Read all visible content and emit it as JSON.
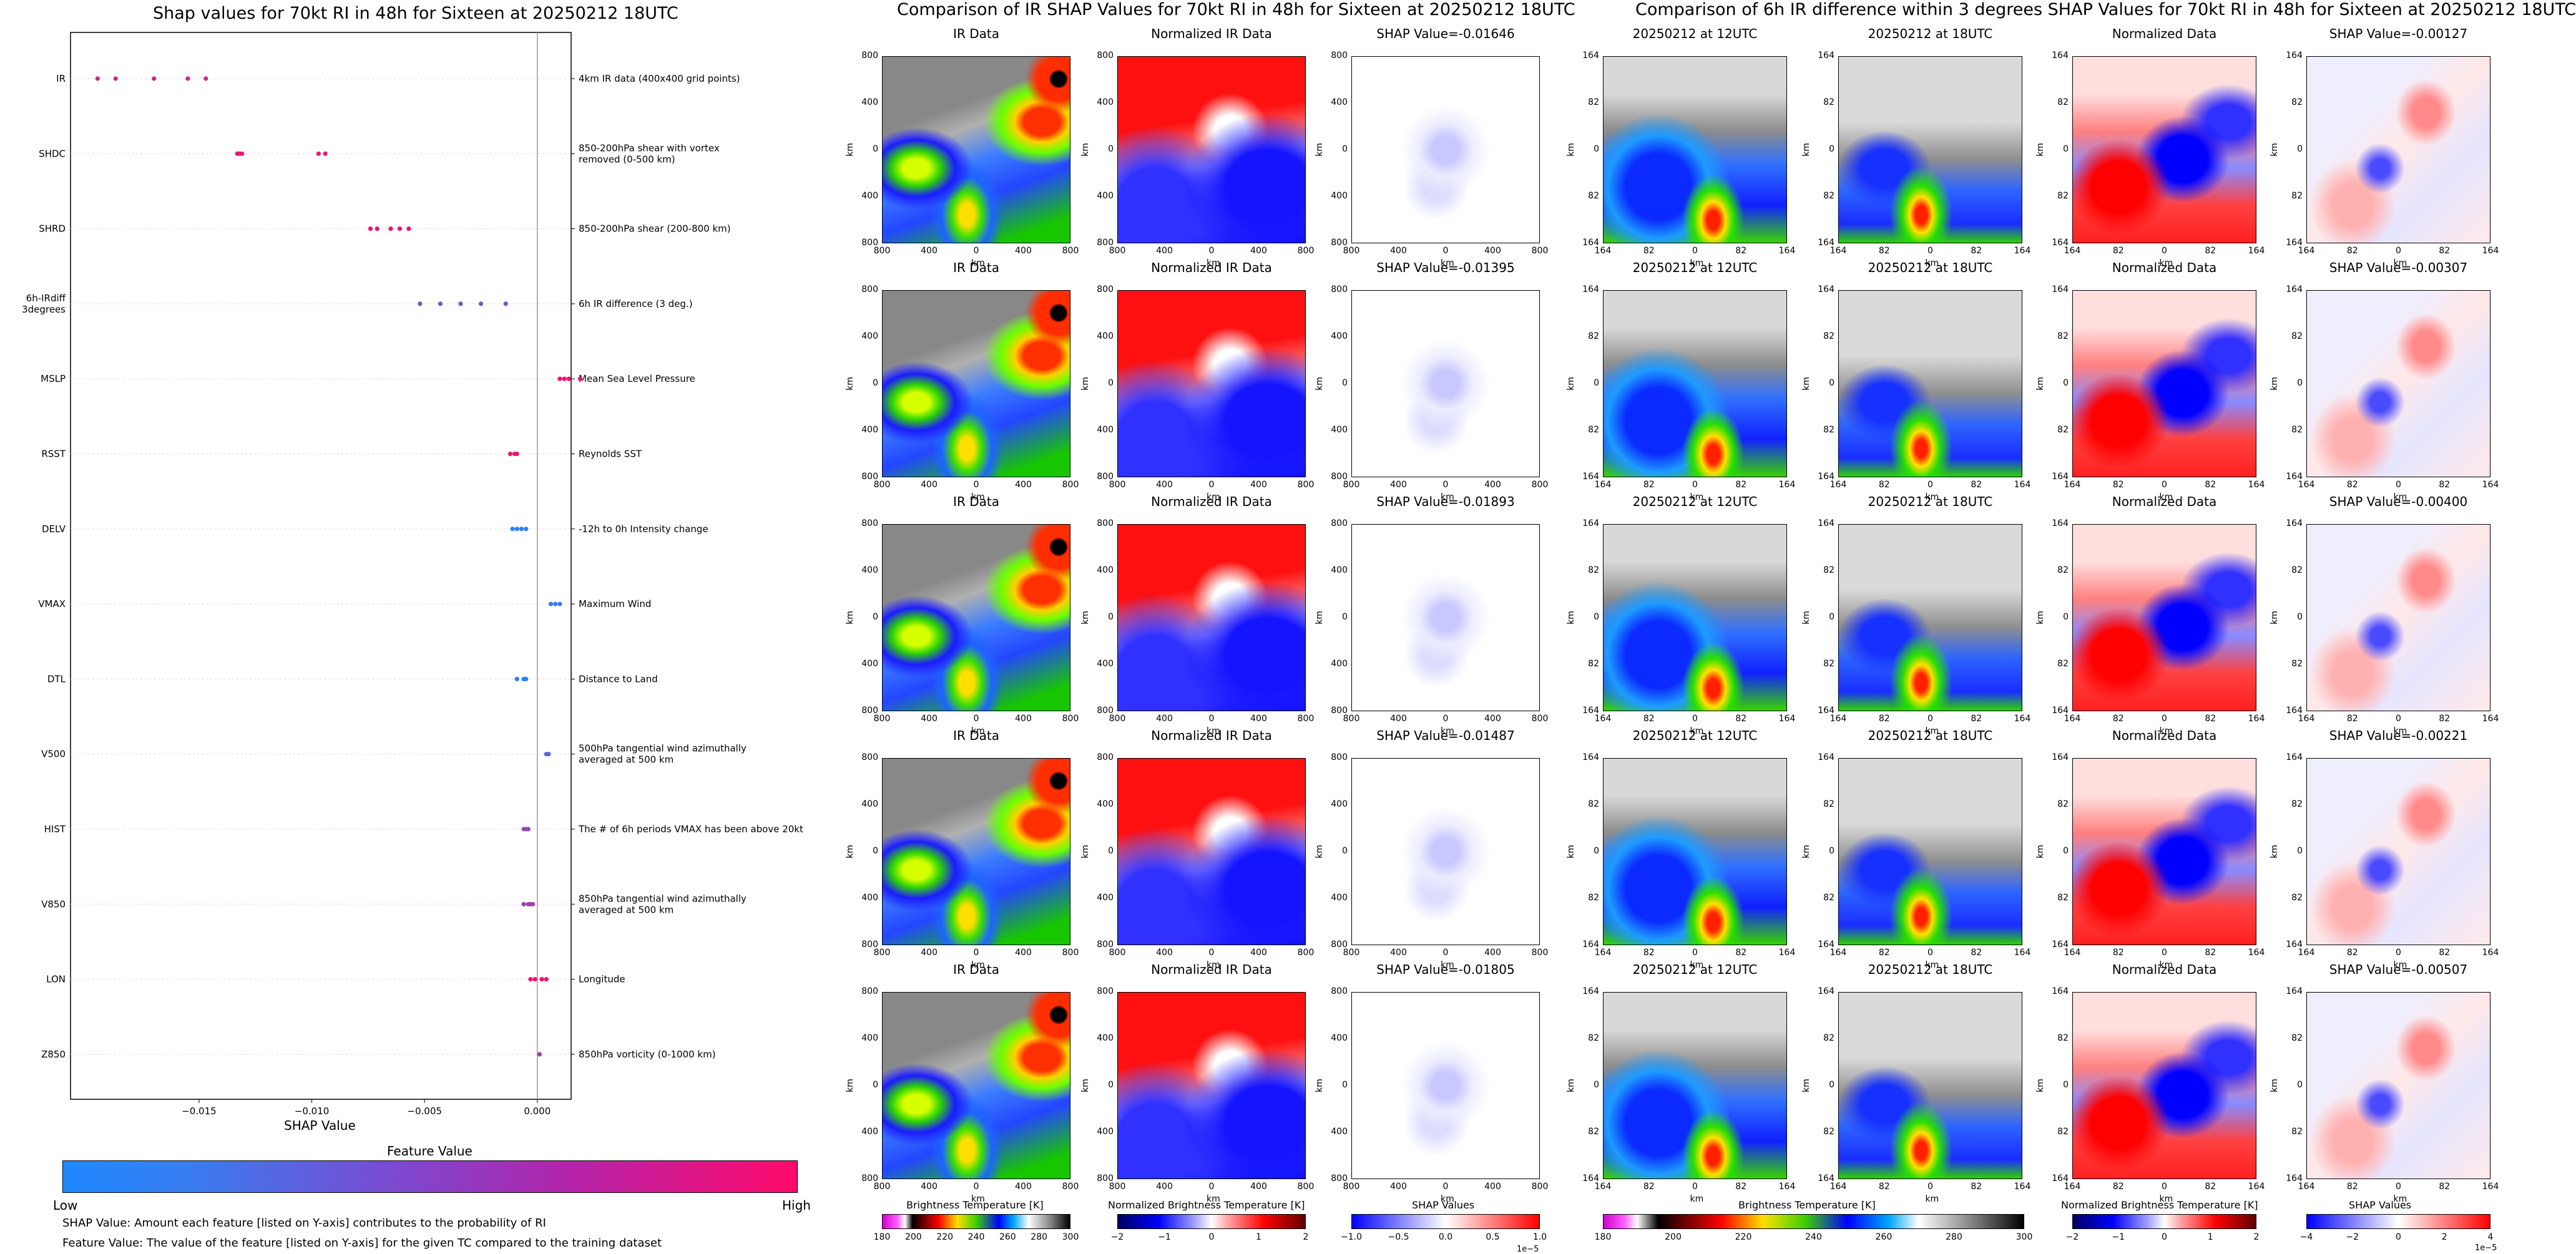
{
  "left": {
    "title": "Shap values for 70kt RI in 48h for Sixteen at 20250212 18UTC",
    "xlabel": "SHAP Value",
    "xticks": [
      "−0.015",
      "−0.010",
      "−0.005",
      "0.000"
    ],
    "colorbar": {
      "title": "Feature Value",
      "low": "Low",
      "high": "High"
    },
    "notes": [
      "SHAP Value: Amount each feature [listed on Y-axis] contributes to the probability of RI",
      "Feature Value: The value of the feature [listed on Y-axis] for the given TC compared to the training dataset"
    ]
  },
  "chart_data": {
    "type": "scatter",
    "title": "Shap values for 70kt RI in 48h for Sixteen at 20250212 18UTC",
    "xlabel": "SHAP Value",
    "xlim": [
      -0.0207,
      0.0015
    ],
    "grid": false,
    "features": [
      {
        "code": "IR",
        "desc": "4km IR data (400x400 grid points)",
        "shap": [
          -0.0195,
          -0.0187,
          -0.017,
          -0.0155,
          -0.0147
        ],
        "feature_value": [
          0.8,
          0.8,
          0.78,
          0.8,
          0.78
        ]
      },
      {
        "code": "SHDC",
        "desc": "850-200hPa shear with vortex removed (0-500 km)",
        "shap": [
          -0.0133,
          -0.0132,
          -0.0131,
          -0.0097,
          -0.0094
        ],
        "feature_value": [
          0.92,
          0.92,
          0.92,
          0.9,
          0.9
        ]
      },
      {
        "code": "SHRD",
        "desc": "850-200hPa shear (200-800 km)",
        "shap": [
          -0.0074,
          -0.0071,
          -0.0065,
          -0.0061,
          -0.0057
        ],
        "feature_value": [
          0.95,
          0.95,
          0.95,
          0.95,
          0.95
        ]
      },
      {
        "code": "6h-IRdiff 3degrees",
        "desc": "6h IR difference (3 deg.)",
        "shap": [
          -0.0052,
          -0.0043,
          -0.0034,
          -0.0025,
          -0.0014
        ],
        "feature_value": [
          0.4,
          0.4,
          0.4,
          0.4,
          0.4
        ]
      },
      {
        "code": "MSLP",
        "desc": "Mean Sea Level Pressure",
        "shap": [
          0.001,
          0.0012,
          0.0014,
          0.0019
        ],
        "feature_value": [
          0.95,
          0.95,
          0.95,
          0.95
        ]
      },
      {
        "code": "RSST",
        "desc": "Reynolds SST",
        "shap": [
          -0.0012,
          -0.001,
          -0.0009
        ],
        "feature_value": [
          0.92,
          0.92,
          0.92
        ]
      },
      {
        "code": "DELV",
        "desc": "-12h to 0h Intensity change",
        "shap": [
          -0.0011,
          -0.0009,
          -0.0007,
          -0.0005
        ],
        "feature_value": [
          0.05,
          0.05,
          0.05,
          0.05
        ]
      },
      {
        "code": "VMAX",
        "desc": "Maximum Wind",
        "shap": [
          0.0006,
          0.0008,
          0.001
        ],
        "feature_value": [
          0.1,
          0.1,
          0.1
        ]
      },
      {
        "code": "DTL",
        "desc": "Distance to Land",
        "shap": [
          -0.0009,
          -0.0006,
          -0.0005
        ],
        "feature_value": [
          0.05,
          0.05,
          0.05
        ]
      },
      {
        "code": "V500",
        "desc": "500hPa tangential wind azimuthally averaged at 500 km",
        "shap": [
          0.0004,
          0.0005
        ],
        "feature_value": [
          0.3,
          0.3
        ]
      },
      {
        "code": "HIST",
        "desc": "The # of 6h periods VMAX has been above 20kt",
        "shap": [
          -0.0006,
          -0.0005,
          -0.0004
        ],
        "feature_value": [
          0.5,
          0.5,
          0.5
        ]
      },
      {
        "code": "V850",
        "desc": "850hPa tangential wind azimuthally averaged at 500 km",
        "shap": [
          -0.0006,
          -0.0004,
          -0.0003,
          -0.0002
        ],
        "feature_value": [
          0.55,
          0.55,
          0.55,
          0.55
        ]
      },
      {
        "code": "LON",
        "desc": "Longitude",
        "shap": [
          -0.0003,
          -0.0001,
          0.0002,
          0.0004
        ],
        "feature_value": [
          0.95,
          0.95,
          0.95,
          0.95
        ]
      },
      {
        "code": "Z850",
        "desc": "850hPa vorticity (0-1000 km)",
        "shap": [
          0.0001
        ],
        "feature_value": [
          0.6
        ]
      }
    ]
  },
  "mid": {
    "title": "Comparison of IR SHAP Values for 70kt RI in 48h for Sixteen at 20250212 18UTC",
    "col_titles": [
      "IR Data",
      "Normalized IR Data"
    ],
    "shap_titles": [
      "SHAP Value=-0.01646",
      "SHAP Value=-0.01395",
      "SHAP Value=-0.01893",
      "SHAP Value=-0.01487",
      "SHAP Value=-0.01805"
    ],
    "yticks": [
      "800",
      "400",
      "0",
      "400",
      "800"
    ],
    "xticks": [
      "800",
      "400",
      "0",
      "400",
      "800"
    ],
    "axis_label": "km",
    "colorbars": [
      {
        "label": "Brightness Temperature [K]",
        "ticks": [
          "180",
          "200",
          "220",
          "240",
          "260",
          "280",
          "300"
        ]
      },
      {
        "label": "Normalized Brightness Temperature [K]",
        "ticks": [
          "−2",
          "−1",
          "0",
          "1",
          "2"
        ]
      },
      {
        "label": "SHAP Values",
        "ticks": [
          "−1.0",
          "−0.5",
          "0.0",
          "0.5",
          "1.0"
        ],
        "offset": "1e−5"
      }
    ]
  },
  "right": {
    "title": "Comparison of 6h IR difference within 3 degrees SHAP Values for 70kt RI in 48h for Sixteen at 20250212 18UTC",
    "col_titles": [
      "20250212 at 12UTC",
      "20250212 at 18UTC",
      "Normalized Data"
    ],
    "shap_titles": [
      "SHAP Value=-0.00127",
      "SHAP Value=-0.00307",
      "SHAP Value=-0.00400",
      "SHAP Value=-0.00221",
      "SHAP Value=-0.00507"
    ],
    "yticks": [
      "164",
      "82",
      "0",
      "82",
      "164"
    ],
    "xticks": [
      "164",
      "82",
      "0",
      "82",
      "164"
    ],
    "axis_label": "km",
    "colorbars": [
      {
        "label": "Brightness Temperature [K]",
        "ticks": [
          "180",
          "200",
          "220",
          "240",
          "260",
          "280",
          "300"
        ]
      },
      {
        "label": "Normalized Brightness Temperature [K]",
        "ticks": [
          "−2",
          "−1",
          "0",
          "1",
          "2"
        ]
      },
      {
        "label": "SHAP Values",
        "ticks": [
          "−4",
          "−2",
          "0",
          "2",
          "4"
        ],
        "offset": "1e−5"
      }
    ]
  }
}
